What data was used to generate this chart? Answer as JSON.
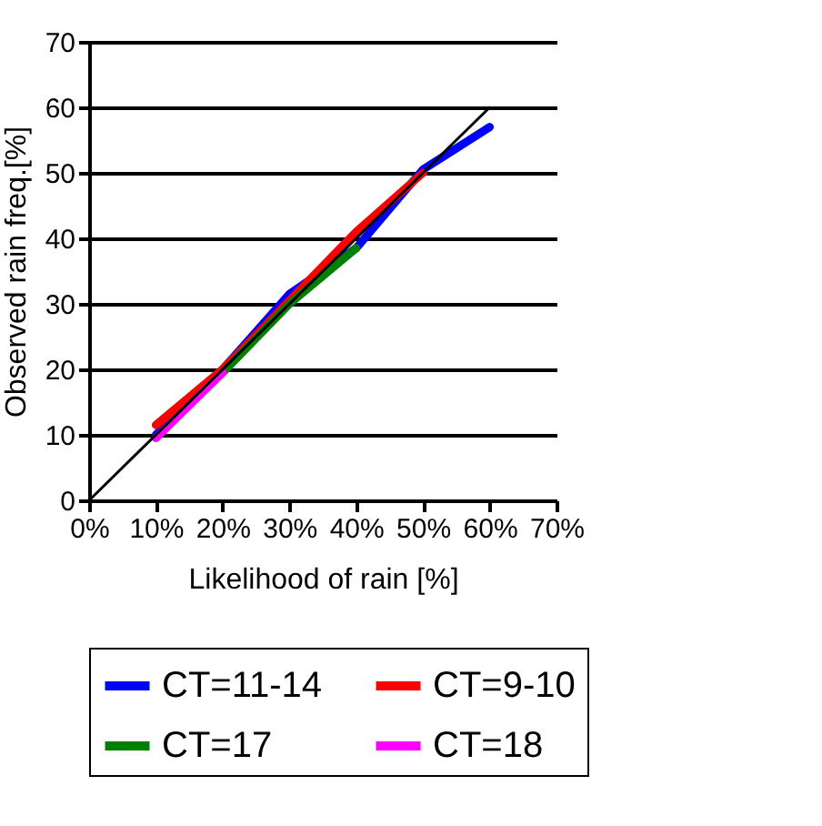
{
  "chart_data": {
    "type": "line",
    "xlabel": "Likelihood of rain [%]",
    "ylabel": "Observed rain freq.[%]",
    "xlim": [
      0,
      70
    ],
    "ylim": [
      0,
      70
    ],
    "xticks": [
      {
        "value": 0,
        "label": "0%"
      },
      {
        "value": 10,
        "label": "10%"
      },
      {
        "value": 20,
        "label": "20%"
      },
      {
        "value": 30,
        "label": "30%"
      },
      {
        "value": 40,
        "label": "40%"
      },
      {
        "value": 50,
        "label": "50%"
      },
      {
        "value": 60,
        "label": "60%"
      },
      {
        "value": 70,
        "label": "70%"
      }
    ],
    "yticks": [
      0,
      10,
      20,
      30,
      40,
      50,
      60,
      70
    ],
    "grid": "y",
    "legend": "bottom",
    "marker": "none",
    "line_style": "solid",
    "series": [
      {
        "name": "CT=11-14",
        "color": "#0000ff",
        "x": [
          10,
          20,
          30,
          40,
          50,
          60
        ],
        "values": [
          10,
          20,
          31.5,
          38.5,
          50.5,
          57
        ]
      },
      {
        "name": "CT=9-10",
        "color": "#ff0000",
        "x": [
          10,
          20,
          30,
          40,
          50
        ],
        "values": [
          11.5,
          20,
          30.5,
          41,
          50
        ]
      },
      {
        "name": "CT=17",
        "color": "#008000",
        "x": [
          20,
          30,
          40
        ],
        "values": [
          19.5,
          30,
          38.5
        ]
      },
      {
        "name": "CT=18",
        "color": "#ff00ff",
        "x": [
          10,
          20
        ],
        "values": [
          9.5,
          19.5
        ]
      },
      {
        "type": "line",
        "color": "#000000",
        "x": [
          0,
          60
        ],
        "values": [
          0,
          60
        ]
      }
    ]
  }
}
